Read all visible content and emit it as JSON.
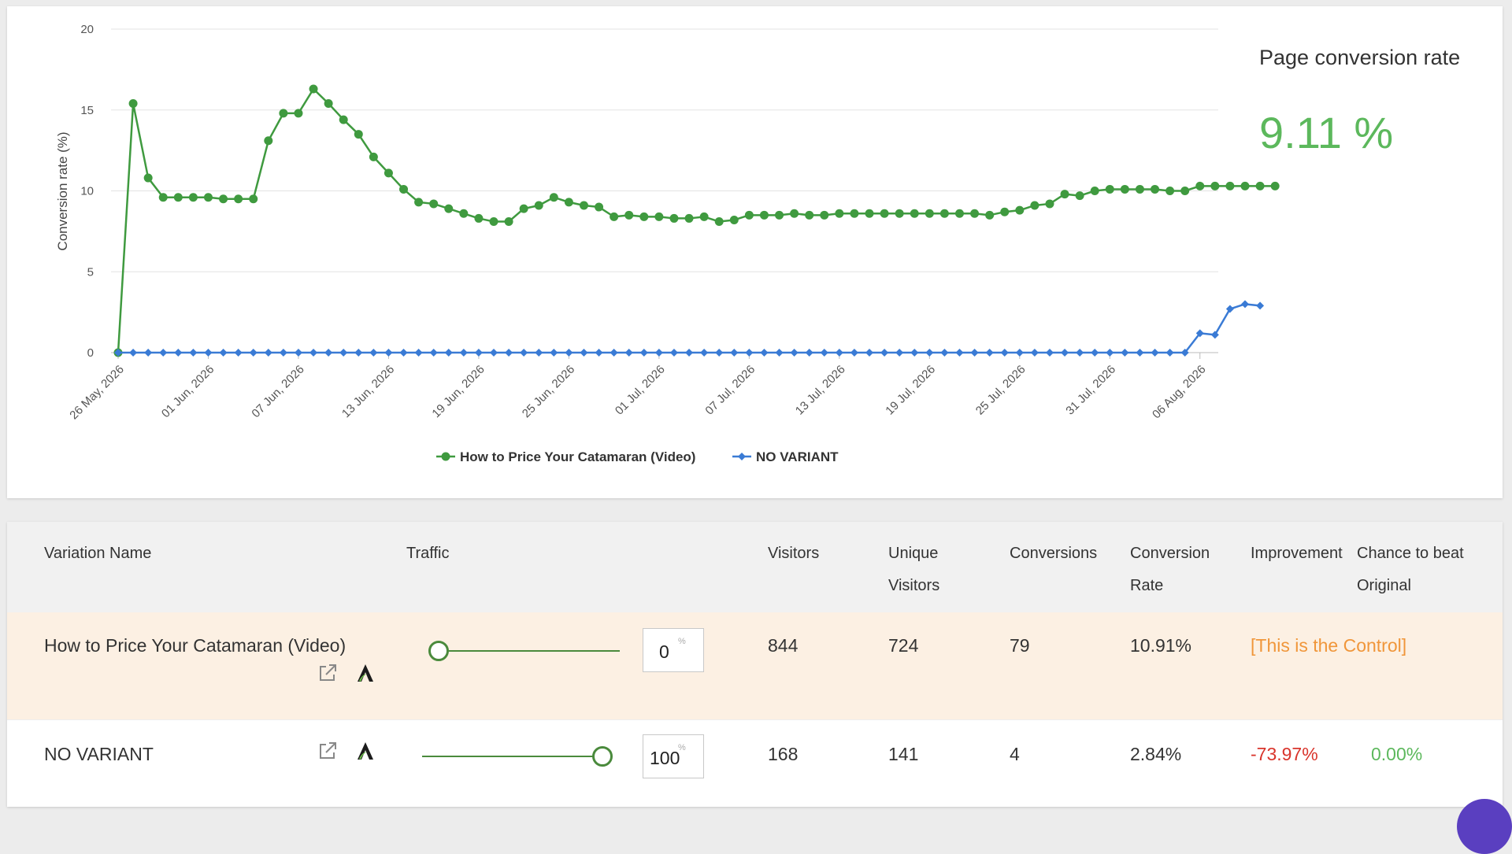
{
  "summary": {
    "title": "Page conversion rate",
    "value": "9.11 %"
  },
  "chart_data": {
    "type": "line",
    "ylabel": "Conversion rate (%)",
    "xlabel": "",
    "ylim": [
      0,
      20
    ],
    "yticks": [
      0,
      5,
      10,
      15,
      20
    ],
    "x_start": "2026-05-26",
    "xtick_labels": [
      "26 May, 2026",
      "01 Jun, 2026",
      "07 Jun, 2026",
      "13 Jun, 2026",
      "19 Jun, 2026",
      "25 Jun, 2026",
      "01 Jul, 2026",
      "07 Jul, 2026",
      "13 Jul, 2026",
      "19 Jul, 2026",
      "25 Jul, 2026",
      "31 Jul, 2026",
      "06 Aug, 2026"
    ],
    "grid": true,
    "legend": "bottom",
    "series": [
      {
        "name": "How to Price Your Catamaran (Video)",
        "color": "#3f9a3f",
        "marker": "circle",
        "values": [
          0,
          15.4,
          10.8,
          9.6,
          9.6,
          9.6,
          9.6,
          9.5,
          9.5,
          9.5,
          13.1,
          14.8,
          14.8,
          16.3,
          15.4,
          14.4,
          13.5,
          12.1,
          11.1,
          10.1,
          9.3,
          9.2,
          8.9,
          8.6,
          8.3,
          8.1,
          8.1,
          8.9,
          9.1,
          9.6,
          9.3,
          9.1,
          9.0,
          8.4,
          8.5,
          8.4,
          8.4,
          8.3,
          8.3,
          8.4,
          8.1,
          8.2,
          8.5,
          8.5,
          8.5,
          8.6,
          8.5,
          8.5,
          8.6,
          8.6,
          8.6,
          8.6,
          8.6,
          8.6,
          8.6,
          8.6,
          8.6,
          8.6,
          8.5,
          8.7,
          8.8,
          9.1,
          9.2,
          9.8,
          9.7,
          10.0,
          10.1,
          10.1,
          10.1,
          10.1,
          10.0,
          10.0,
          10.3,
          10.3,
          10.3,
          10.3,
          10.3,
          10.3
        ]
      },
      {
        "name": "NO VARIANT",
        "color": "#3a7bd5",
        "marker": "diamond",
        "values": [
          0,
          0,
          0,
          0,
          0,
          0,
          0,
          0,
          0,
          0,
          0,
          0,
          0,
          0,
          0,
          0,
          0,
          0,
          0,
          0,
          0,
          0,
          0,
          0,
          0,
          0,
          0,
          0,
          0,
          0,
          0,
          0,
          0,
          0,
          0,
          0,
          0,
          0,
          0,
          0,
          0,
          0,
          0,
          0,
          0,
          0,
          0,
          0,
          0,
          0,
          0,
          0,
          0,
          0,
          0,
          0,
          0,
          0,
          0,
          0,
          0,
          0,
          0,
          0,
          0,
          0,
          0,
          0,
          0,
          0,
          0,
          0,
          1.2,
          1.1,
          2.7,
          3.0,
          2.9
        ]
      }
    ]
  },
  "table": {
    "headers": {
      "name": "Variation Name",
      "traffic": "Traffic",
      "visitors": "Visitors",
      "unique_1": "Unique",
      "unique_2": "Visitors",
      "conversions": "Conversions",
      "rate_1": "Conversion",
      "rate_2": "Rate",
      "improvement": "Improvement",
      "chance_1": "Chance to beat",
      "chance_2": "Original"
    },
    "rows": [
      {
        "name": "How to Price Your Catamaran (Video)",
        "traffic_value": "0",
        "traffic_unit": "%",
        "traffic_fraction": 0,
        "visitors": "844",
        "unique_visitors": "724",
        "conversions": "79",
        "conversion_rate": "10.91%",
        "improvement": "[This is the Control]",
        "chance": ""
      },
      {
        "name": "NO VARIANT",
        "traffic_value": "100",
        "traffic_unit": "%",
        "traffic_fraction": 1,
        "visitors": "168",
        "unique_visitors": "141",
        "conversions": "4",
        "conversion_rate": "2.84%",
        "improvement": "-73.97%",
        "chance": "0.00%"
      }
    ],
    "icons": [
      "external-link-icon",
      "editor-logo-icon"
    ]
  }
}
